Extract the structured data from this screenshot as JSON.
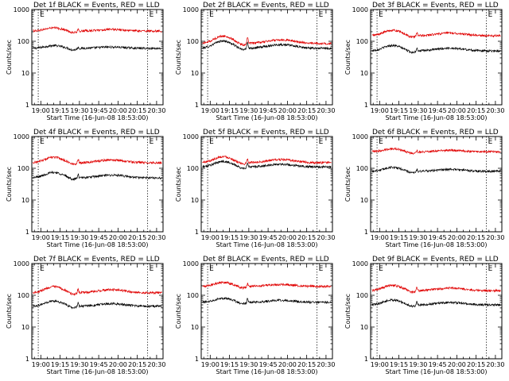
{
  "chart_data": [
    {
      "type": "line",
      "title": "Det 1f BLACK = Events, RED = LLD",
      "xlabel": "Start Time (16-Jun-08 18:53:00)",
      "ylabel": "Counts/sec",
      "yscale": "log",
      "ylim": [
        1,
        1000
      ],
      "xlim_minutes": [
        1133,
        1235
      ],
      "x_ticks": [
        "19:00",
        "19:15",
        "19:30",
        "19:45",
        "20:00",
        "20:15",
        "20:30"
      ],
      "y_ticks": [
        "1",
        "10",
        "100",
        "1000"
      ],
      "markers": [
        {
          "label": "E",
          "time": "18:58"
        },
        {
          "label": "E",
          "time": "20:23"
        }
      ],
      "series": [
        {
          "color": "#000000",
          "base": 60,
          "amp": 22,
          "phase": 0.0,
          "spike": 1.15
        },
        {
          "color": "#e00000",
          "base": 210,
          "amp": 90,
          "phase": 0.0,
          "spike": 1.15
        }
      ]
    },
    {
      "type": "line",
      "title": "Det 2f BLACK = Events, RED = LLD",
      "xlabel": "Start Time (16-Jun-08 18:53:00)",
      "ylabel": "Counts/sec",
      "yscale": "log",
      "ylim": [
        1,
        1000
      ],
      "xlim_minutes": [
        1133,
        1235
      ],
      "x_ticks": [
        "19:00",
        "19:15",
        "19:30",
        "19:45",
        "20:00",
        "20:15",
        "20:30"
      ],
      "y_ticks": [
        "1",
        "10",
        "100",
        "1000"
      ],
      "markers": [
        {
          "label": "E",
          "time": "18:58"
        },
        {
          "label": "E",
          "time": "20:23"
        }
      ],
      "series": [
        {
          "color": "#000000",
          "base": 60,
          "amp": 70,
          "phase": 0.0,
          "spike": 1.7
        },
        {
          "color": "#e00000",
          "base": 85,
          "amp": 100,
          "phase": 0.0,
          "spike": 1.7
        }
      ]
    },
    {
      "type": "line",
      "title": "Det 3f BLACK = Events, RED = LLD",
      "xlabel": "Start Time (16-Jun-08 18:53:00)",
      "ylabel": "Counts/sec",
      "yscale": "log",
      "ylim": [
        1,
        1000
      ],
      "xlim_minutes": [
        1133,
        1235
      ],
      "x_ticks": [
        "19:00",
        "19:15",
        "19:30",
        "19:45",
        "20:00",
        "20:15",
        "20:30"
      ],
      "y_ticks": [
        "1",
        "10",
        "100",
        "1000"
      ],
      "markers": [
        {
          "label": "E",
          "time": "18:58"
        },
        {
          "label": "E",
          "time": "20:23"
        }
      ],
      "series": [
        {
          "color": "#000000",
          "base": 50,
          "amp": 40,
          "phase": 0.0,
          "spike": 1.3
        },
        {
          "color": "#e00000",
          "base": 150,
          "amp": 120,
          "phase": 0.0,
          "spike": 1.3
        }
      ]
    },
    {
      "type": "line",
      "title": "Det 4f BLACK = Events, RED = LLD",
      "xlabel": "Start Time (16-Jun-08 18:53:00)",
      "ylabel": "Counts/sec",
      "yscale": "log",
      "ylim": [
        1,
        1000
      ],
      "xlim_minutes": [
        1133,
        1235
      ],
      "x_ticks": [
        "19:00",
        "19:15",
        "19:30",
        "19:45",
        "20:00",
        "20:15",
        "20:30"
      ],
      "y_ticks": [
        "1",
        "10",
        "100",
        "1000"
      ],
      "markers": [
        {
          "label": "E",
          "time": "18:58"
        },
        {
          "label": "E",
          "time": "20:23"
        }
      ],
      "series": [
        {
          "color": "#000000",
          "base": 50,
          "amp": 40,
          "phase": 0.0,
          "spike": 1.35
        },
        {
          "color": "#e00000",
          "base": 150,
          "amp": 120,
          "phase": 0.0,
          "spike": 1.35
        }
      ]
    },
    {
      "type": "line",
      "title": "Det 5f BLACK = Events, RED = LLD",
      "xlabel": "Start Time (16-Jun-08 18:53:00)",
      "ylabel": "Counts/sec",
      "yscale": "log",
      "ylim": [
        1,
        1000
      ],
      "xlim_minutes": [
        1133,
        1235
      ],
      "x_ticks": [
        "19:00",
        "19:15",
        "19:30",
        "19:45",
        "20:00",
        "20:15",
        "20:30"
      ],
      "y_ticks": [
        "1",
        "10",
        "100",
        "1000"
      ],
      "markers": [
        {
          "label": "E",
          "time": "18:58"
        },
        {
          "label": "E",
          "time": "20:23"
        }
      ],
      "series": [
        {
          "color": "#000000",
          "base": 110,
          "amp": 90,
          "phase": 0.0,
          "spike": 1.4
        },
        {
          "color": "#e00000",
          "base": 150,
          "amp": 140,
          "phase": 0.0,
          "spike": 1.4
        }
      ]
    },
    {
      "type": "line",
      "title": "Det 6f BLACK = Events, RED = LLD",
      "xlabel": "Start Time (16-Jun-08 18:53:00)",
      "ylabel": "Counts/sec",
      "yscale": "log",
      "ylim": [
        1,
        1000
      ],
      "xlim_minutes": [
        1133,
        1235
      ],
      "x_ticks": [
        "19:00",
        "19:15",
        "19:30",
        "19:45",
        "20:00",
        "20:15",
        "20:30"
      ],
      "y_ticks": [
        "1",
        "10",
        "100",
        "1000"
      ],
      "markers": [
        {
          "label": "E",
          "time": "18:58"
        },
        {
          "label": "E",
          "time": "20:23"
        }
      ],
      "series": [
        {
          "color": "#000000",
          "base": 80,
          "amp": 45,
          "phase": 0.0,
          "spike": 1.2
        },
        {
          "color": "#e00000",
          "base": 330,
          "amp": 140,
          "phase": 0.0,
          "spike": 1.15
        }
      ]
    },
    {
      "type": "line",
      "title": "Det 7f BLACK = Events, RED = LLD",
      "xlabel": "Start Time (16-Jun-08 18:53:00)",
      "ylabel": "Counts/sec",
      "yscale": "log",
      "ylim": [
        1,
        1000
      ],
      "xlim_minutes": [
        1133,
        1235
      ],
      "x_ticks": [
        "19:00",
        "19:15",
        "19:30",
        "19:45",
        "20:00",
        "20:15",
        "20:30"
      ],
      "y_ticks": [
        "1",
        "10",
        "100",
        "1000"
      ],
      "markers": [
        {
          "label": "E",
          "time": "18:58"
        },
        {
          "label": "E",
          "time": "20:23"
        }
      ],
      "series": [
        {
          "color": "#000000",
          "base": 45,
          "amp": 35,
          "phase": 0.0,
          "spike": 1.4
        },
        {
          "color": "#e00000",
          "base": 120,
          "amp": 110,
          "phase": 0.0,
          "spike": 1.4
        }
      ]
    },
    {
      "type": "line",
      "title": "Det 8f BLACK = Events, RED = LLD",
      "xlabel": "Start Time (16-Jun-08 18:53:00)",
      "ylabel": "Counts/sec",
      "yscale": "log",
      "ylim": [
        1,
        1000
      ],
      "xlim_minutes": [
        1133,
        1235
      ],
      "x_ticks": [
        "19:00",
        "19:15",
        "19:30",
        "19:45",
        "20:00",
        "20:15",
        "20:30"
      ],
      "y_ticks": [
        "1",
        "10",
        "100",
        "1000"
      ],
      "markers": [
        {
          "label": "E",
          "time": "18:58"
        },
        {
          "label": "E",
          "time": "20:23"
        }
      ],
      "series": [
        {
          "color": "#000000",
          "base": 60,
          "amp": 35,
          "phase": 0.0,
          "spike": 1.35
        },
        {
          "color": "#e00000",
          "base": 190,
          "amp": 110,
          "phase": 0.0,
          "spike": 1.3
        }
      ]
    },
    {
      "type": "line",
      "title": "Det 9f BLACK = Events, RED = LLD",
      "xlabel": "Start Time (16-Jun-08 18:53:00)",
      "ylabel": "Counts/sec",
      "yscale": "log",
      "ylim": [
        1,
        1000
      ],
      "xlim_minutes": [
        1133,
        1235
      ],
      "x_ticks": [
        "19:00",
        "19:15",
        "19:30",
        "19:45",
        "20:00",
        "20:15",
        "20:30"
      ],
      "y_ticks": [
        "1",
        "10",
        "100",
        "1000"
      ],
      "markers": [
        {
          "label": "E",
          "time": "18:58"
        },
        {
          "label": "E",
          "time": "20:23"
        }
      ],
      "series": [
        {
          "color": "#000000",
          "base": 50,
          "amp": 35,
          "phase": 0.0,
          "spike": 1.3
        },
        {
          "color": "#e00000",
          "base": 140,
          "amp": 110,
          "phase": 0.0,
          "spike": 1.3
        }
      ]
    }
  ]
}
